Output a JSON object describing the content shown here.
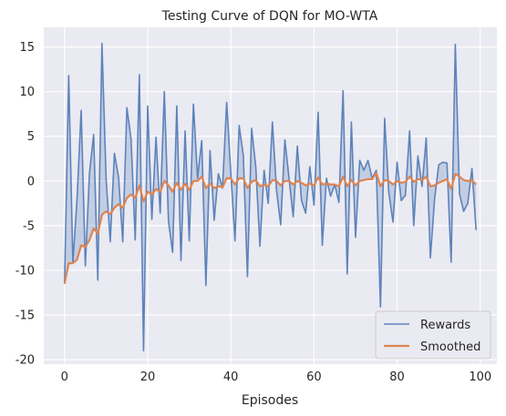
{
  "chart_data": {
    "type": "line",
    "title": "Testing Curve of DQN for MO-WTA",
    "xlabel": "Episodes",
    "ylabel": "",
    "xlim": [
      -5,
      104
    ],
    "ylim": [
      -20.5,
      17.2
    ],
    "xticks": [
      0,
      20,
      40,
      60,
      80,
      100
    ],
    "yticks": [
      -20,
      -15,
      -10,
      -5,
      0,
      5,
      10,
      15
    ],
    "grid": true,
    "legend_position": "lower-right",
    "series": [
      {
        "name": "Rewards",
        "color": "#5d83bb",
        "fill_to": "Smoothed",
        "x": [
          0,
          1,
          2,
          3,
          4,
          5,
          6,
          7,
          8,
          9,
          10,
          11,
          12,
          13,
          14,
          15,
          16,
          17,
          18,
          19,
          20,
          21,
          22,
          23,
          24,
          25,
          26,
          27,
          28,
          29,
          30,
          31,
          32,
          33,
          34,
          35,
          36,
          37,
          38,
          39,
          40,
          41,
          42,
          43,
          44,
          45,
          46,
          47,
          48,
          49,
          50,
          51,
          52,
          53,
          54,
          55,
          56,
          57,
          58,
          59,
          60,
          61,
          62,
          63,
          64,
          65,
          66,
          67,
          68,
          69,
          70,
          71,
          72,
          73,
          74,
          75,
          76,
          77,
          78,
          79,
          80,
          81,
          82,
          83,
          84,
          85,
          86,
          87,
          88,
          89,
          90,
          91,
          92,
          93,
          94,
          95,
          96,
          97,
          98,
          99
        ],
        "values": [
          -11.5,
          11.8,
          -9.2,
          -2.0,
          7.9,
          -9.5,
          0.9,
          5.2,
          -11.1,
          15.4,
          0.2,
          -6.8,
          3.1,
          0.4,
          -6.8,
          8.2,
          4.7,
          -6.6,
          11.9,
          -19.0,
          8.4,
          -4.3,
          4.9,
          -3.6,
          10.0,
          -4.5,
          -8.0,
          8.4,
          -8.9,
          5.6,
          -6.7,
          8.6,
          0.3,
          4.5,
          -11.7,
          3.4,
          -4.4,
          0.8,
          -0.8,
          8.8,
          0.9,
          -6.7,
          6.2,
          2.9,
          -10.7,
          5.9,
          1.6,
          -7.3,
          1.2,
          -2.5,
          6.6,
          -1.1,
          -4.9,
          4.6,
          0.3,
          -4.0,
          3.9,
          -2.2,
          -3.6,
          1.6,
          -2.7,
          7.7,
          -7.2,
          0.3,
          -1.7,
          -0.4,
          -2.4,
          10.1,
          -10.4,
          6.6,
          -6.3,
          2.3,
          1.2,
          2.3,
          0.3,
          1.2,
          -14.1,
          7.0,
          -1.3,
          -4.6,
          2.1,
          -2.2,
          -1.6,
          5.6,
          -5.0,
          2.8,
          -0.6,
          4.8,
          -8.6,
          -2.1,
          1.8,
          2.1,
          2.0,
          -9.1,
          15.3,
          -1.4,
          -3.4,
          -2.5,
          1.4,
          -5.5
        ]
      },
      {
        "name": "Smoothed",
        "color": "#dd8452",
        "x": [
          0,
          1,
          2,
          3,
          4,
          5,
          6,
          7,
          8,
          9,
          10,
          11,
          12,
          13,
          14,
          15,
          16,
          17,
          18,
          19,
          20,
          21,
          22,
          23,
          24,
          25,
          26,
          27,
          28,
          29,
          30,
          31,
          32,
          33,
          34,
          35,
          36,
          37,
          38,
          39,
          40,
          41,
          42,
          43,
          44,
          45,
          46,
          47,
          48,
          49,
          50,
          51,
          52,
          53,
          54,
          55,
          56,
          57,
          58,
          59,
          60,
          61,
          62,
          63,
          64,
          65,
          66,
          67,
          68,
          69,
          70,
          71,
          72,
          73,
          74,
          75,
          76,
          77,
          78,
          79,
          80,
          81,
          82,
          83,
          84,
          85,
          86,
          87,
          88,
          89,
          90,
          91,
          92,
          93,
          94,
          95,
          96,
          97,
          98,
          99
        ],
        "values": [
          -11.5,
          -9.2,
          -9.2,
          -8.8,
          -7.2,
          -7.4,
          -6.6,
          -5.3,
          -5.9,
          -3.8,
          -3.4,
          -3.7,
          -3.0,
          -2.6,
          -3.0,
          -1.9,
          -1.5,
          -1.9,
          -0.5,
          -2.3,
          -1.2,
          -1.5,
          -0.9,
          -1.2,
          0.0,
          -0.5,
          -1.2,
          -0.2,
          -1.0,
          -0.3,
          -1.0,
          0.0,
          0.0,
          0.5,
          -0.8,
          -0.3,
          -0.8,
          -0.6,
          -0.7,
          0.3,
          0.3,
          -0.4,
          0.3,
          0.3,
          -0.8,
          -0.1,
          0.1,
          -0.6,
          -0.4,
          -0.6,
          0.1,
          0.0,
          -0.5,
          0.0,
          0.0,
          -0.4,
          0.0,
          -0.2,
          -0.5,
          -0.3,
          -0.5,
          0.4,
          -0.4,
          -0.3,
          -0.4,
          -0.4,
          -0.6,
          0.5,
          -0.6,
          0.1,
          -0.5,
          0.0,
          0.1,
          0.2,
          0.2,
          0.9,
          -0.6,
          0.1,
          0.0,
          -0.4,
          0.0,
          -0.2,
          -0.1,
          0.5,
          -0.1,
          0.2,
          0.1,
          0.5,
          -0.6,
          -0.5,
          -0.2,
          0.0,
          0.2,
          -0.9,
          0.8,
          0.5,
          0.1,
          0.0,
          0.1,
          -0.4
        ]
      }
    ]
  }
}
